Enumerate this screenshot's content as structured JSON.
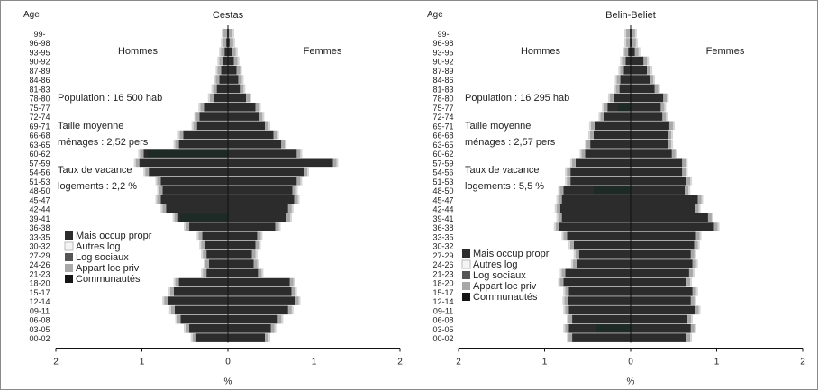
{
  "colors": {
    "mais_occup_propr": "#2c2c2c",
    "autres_log": "#f4f4f4",
    "log_sociaux": "#555555",
    "appart_loc_priv": "#a8a8a8",
    "communautes": "#151515"
  },
  "chart_data": [
    {
      "type": "bar",
      "title": "Cestas",
      "xlabel": "%",
      "ylabel": "Age",
      "xlim": [
        -2,
        2
      ],
      "xticks": [
        "2",
        "1",
        "0",
        "1",
        "2"
      ],
      "left_label": "Hommes",
      "right_label": "Femmes",
      "info": {
        "population": "Population : 16 500 hab",
        "taille_1": "Taille moyenne",
        "taille_2": "ménages : 2,52 pers",
        "vacance_1": "Taux de vacance",
        "vacance_2": "logements : 2,2 %"
      },
      "categories": [
        "99-",
        "96-98",
        "93-95",
        "90-92",
        "87-89",
        "84-86",
        "81-83",
        "78-80",
        "75-77",
        "72-74",
        "69-71",
        "66-68",
        "63-65",
        "60-62",
        "57-59",
        "54-56",
        "51-53",
        "48-50",
        "45-47",
        "42-44",
        "39-41",
        "36-38",
        "33-35",
        "30-32",
        "27-29",
        "24-26",
        "21-23",
        "18-20",
        "15-17",
        "12-14",
        "09-11",
        "06-08",
        "03-05",
        "00-02"
      ],
      "hommes": [
        0.01,
        0.02,
        0.04,
        0.06,
        0.08,
        0.1,
        0.13,
        0.17,
        0.28,
        0.33,
        0.36,
        0.52,
        0.57,
        0.98,
        1.03,
        0.92,
        0.78,
        0.76,
        0.78,
        0.72,
        0.58,
        0.45,
        0.3,
        0.27,
        0.25,
        0.22,
        0.25,
        0.57,
        0.63,
        0.7,
        0.62,
        0.55,
        0.45,
        0.37
      ],
      "femmes": [
        0.01,
        0.02,
        0.05,
        0.07,
        0.1,
        0.12,
        0.14,
        0.21,
        0.32,
        0.36,
        0.43,
        0.53,
        0.62,
        0.8,
        1.22,
        0.88,
        0.8,
        0.75,
        0.77,
        0.7,
        0.68,
        0.55,
        0.34,
        0.32,
        0.28,
        0.3,
        0.35,
        0.72,
        0.74,
        0.78,
        0.7,
        0.58,
        0.5,
        0.43
      ],
      "legend": [
        "Mais occup propr",
        "Autres log",
        "Log sociaux",
        "Appart loc priv",
        "Communautés"
      ]
    },
    {
      "type": "bar",
      "title": "Belin-Beliet",
      "xlabel": "%",
      "ylabel": "Age",
      "xlim": [
        -2,
        2
      ],
      "xticks": [
        "2",
        "1",
        "0",
        "1",
        "2"
      ],
      "left_label": "Hommes",
      "right_label": "Femmes",
      "info": {
        "population": "Population : 16 295 hab",
        "taille_1": "Taille moyenne",
        "taille_2": "ménages :  2,57 pers",
        "vacance_1": "Taux de vacance",
        "vacance_2": "logements : 5,5 %"
      },
      "categories": [
        "99-",
        "96-98",
        "93-95",
        "90-92",
        "87-89",
        "84-86",
        "81-83",
        "78-80",
        "75-77",
        "72-74",
        "69-71",
        "66-68",
        "63-65",
        "60-62",
        "57-59",
        "54-56",
        "51-53",
        "48-50",
        "45-47",
        "42-44",
        "39-41",
        "36-38",
        "33-35",
        "30-32",
        "27-29",
        "24-26",
        "21-23",
        "18-20",
        "15-17",
        "12-14",
        "09-11",
        "06-08",
        "03-05",
        "00-02"
      ],
      "hommes": [
        0.01,
        0.01,
        0.03,
        0.06,
        0.08,
        0.12,
        0.13,
        0.2,
        0.27,
        0.31,
        0.42,
        0.43,
        0.47,
        0.53,
        0.64,
        0.7,
        0.7,
        0.78,
        0.8,
        0.82,
        0.8,
        0.83,
        0.74,
        0.66,
        0.6,
        0.63,
        0.76,
        0.78,
        0.72,
        0.73,
        0.72,
        0.68,
        0.72,
        0.68
      ],
      "femmes": [
        0.01,
        0.02,
        0.05,
        0.15,
        0.19,
        0.22,
        0.28,
        0.38,
        0.35,
        0.37,
        0.45,
        0.43,
        0.43,
        0.48,
        0.6,
        0.6,
        0.65,
        0.63,
        0.78,
        0.75,
        0.9,
        0.97,
        0.76,
        0.74,
        0.7,
        0.72,
        0.68,
        0.65,
        0.72,
        0.7,
        0.75,
        0.66,
        0.7,
        0.65
      ],
      "legend": [
        "Mais occup propr",
        "Autres log",
        "Log sociaux",
        "Appart loc priv",
        "Communautés"
      ]
    }
  ]
}
